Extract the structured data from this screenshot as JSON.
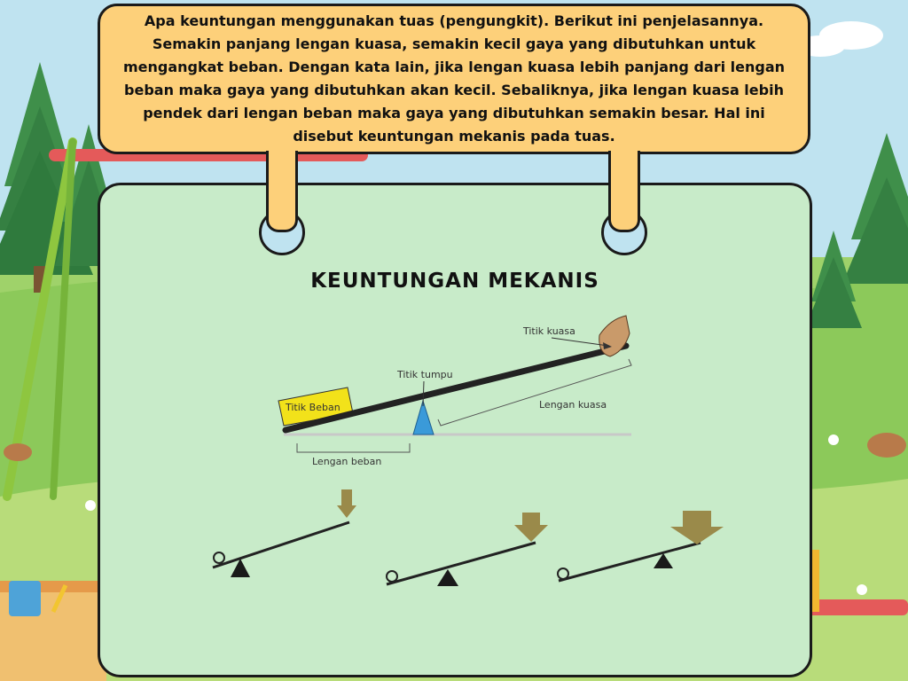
{
  "bubble": {
    "text": "Apa keuntungan menggunakan tuas (pengungkit). Berikut ini penjelasannya. Semakin panjang lengan kuasa, semakin kecil gaya yang dibutuhkan untuk mengangkat beban. Dengan kata lain, jika lengan kuasa lebih panjang dari lengan beban maka gaya yang dibutuhkan akan kecil. Sebaliknya, jika lengan kuasa lebih pendek dari lengan beban maka gaya yang dibutuhkan semakin besar. Hal ini disebut keuntungan mekanis pada tuas."
  },
  "diagram": {
    "title": "KEUNTUNGAN MEKANIS",
    "labels": {
      "effort_point": "Titik kuasa",
      "fulcrum": "Titik tumpu",
      "load_point": "Titik Beban",
      "effort_arm": "Lengan kuasa",
      "load_arm": "Lengan beban"
    }
  },
  "colors": {
    "bubble": "#fdd07a",
    "panel": "#c8ebc9",
    "fulcrum": "#3a9ad9",
    "load_box": "#f2e21a",
    "arrow": "#9a8a4a"
  }
}
